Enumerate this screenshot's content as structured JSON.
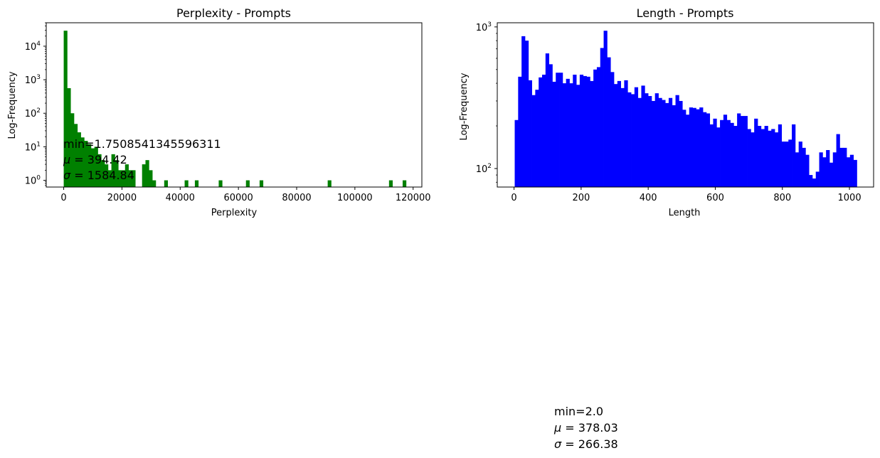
{
  "chart_data": [
    {
      "type": "bar",
      "title": "Perplexity - Prompts",
      "xlabel": "Perplexity",
      "ylabel": "Log-Frequency",
      "yscale": "log",
      "color": "#008000",
      "xlim": [
        -6000,
        123000
      ],
      "ylim": [
        0.63,
        50000
      ],
      "xticks": [
        0,
        20000,
        40000,
        60000,
        80000,
        100000,
        120000
      ],
      "xtick_labels": [
        "0",
        "20000",
        "40000",
        "60000",
        "80000",
        "100000",
        "120000"
      ],
      "ytick_base": "10",
      "ytick_exponents": [
        "0",
        "1",
        "2",
        "3",
        "4"
      ],
      "yticks": [
        1,
        10,
        100,
        1000,
        10000
      ],
      "bin_width": 1170,
      "bins": [
        {
          "x": 0,
          "count": 29000
        },
        {
          "x": 1170,
          "count": 560
        },
        {
          "x": 2340,
          "count": 100
        },
        {
          "x": 3510,
          "count": 48
        },
        {
          "x": 4680,
          "count": 27
        },
        {
          "x": 5850,
          "count": 19
        },
        {
          "x": 7020,
          "count": 15
        },
        {
          "x": 8190,
          "count": 12
        },
        {
          "x": 9360,
          "count": 9
        },
        {
          "x": 10530,
          "count": 10
        },
        {
          "x": 11700,
          "count": 6
        },
        {
          "x": 12870,
          "count": 4
        },
        {
          "x": 14040,
          "count": 3
        },
        {
          "x": 15210,
          "count": 2
        },
        {
          "x": 16380,
          "count": 6
        },
        {
          "x": 17550,
          "count": 4
        },
        {
          "x": 18720,
          "count": 2
        },
        {
          "x": 19890,
          "count": 2
        },
        {
          "x": 21060,
          "count": 3
        },
        {
          "x": 22230,
          "count": 2
        },
        {
          "x": 23400,
          "count": 2
        },
        {
          "x": 26910,
          "count": 3
        },
        {
          "x": 28080,
          "count": 4
        },
        {
          "x": 29250,
          "count": 2
        },
        {
          "x": 30420,
          "count": 1
        },
        {
          "x": 34510,
          "count": 1
        },
        {
          "x": 41530,
          "count": 1
        },
        {
          "x": 45040,
          "count": 1
        },
        {
          "x": 53230,
          "count": 1
        },
        {
          "x": 62590,
          "count": 1
        },
        {
          "x": 67270,
          "count": 1
        },
        {
          "x": 90660,
          "count": 1
        },
        {
          "x": 111720,
          "count": 1
        },
        {
          "x": 116400,
          "count": 1
        }
      ],
      "stats": {
        "min": "min=1.7508541345596311",
        "mu_label": "μ",
        "mu_value": " = 394.42",
        "sigma_label": "σ",
        "sigma_value": " = 1584.84"
      }
    },
    {
      "type": "bar",
      "title": "Length - Prompts",
      "xlabel": "Length",
      "ylabel": "Log-Frequency",
      "yscale": "log",
      "color": "#0000ff",
      "xlim": [
        -50,
        1072
      ],
      "ylim": [
        74,
        1070
      ],
      "xticks": [
        0,
        200,
        400,
        600,
        800,
        1000
      ],
      "xtick_labels": [
        "0",
        "200",
        "400",
        "600",
        "800",
        "1000"
      ],
      "ytick_base": "10",
      "ytick_exponents": [
        "2",
        "3"
      ],
      "yticks": [
        100,
        1000
      ],
      "bin_width": 10.2,
      "bins": [
        {
          "x": 2,
          "count": 220
        },
        {
          "x": 12.2,
          "count": 445
        },
        {
          "x": 22.4,
          "count": 860
        },
        {
          "x": 32.6,
          "count": 800
        },
        {
          "x": 42.8,
          "count": 420
        },
        {
          "x": 53.0,
          "count": 330
        },
        {
          "x": 63.2,
          "count": 360
        },
        {
          "x": 73.4,
          "count": 440
        },
        {
          "x": 83.6,
          "count": 460
        },
        {
          "x": 93.8,
          "count": 650
        },
        {
          "x": 104.0,
          "count": 545
        },
        {
          "x": 114.2,
          "count": 410
        },
        {
          "x": 124.4,
          "count": 475
        },
        {
          "x": 134.6,
          "count": 475
        },
        {
          "x": 144.8,
          "count": 400
        },
        {
          "x": 155.0,
          "count": 430
        },
        {
          "x": 165.2,
          "count": 400
        },
        {
          "x": 175.4,
          "count": 460
        },
        {
          "x": 185.6,
          "count": 390
        },
        {
          "x": 195.8,
          "count": 460
        },
        {
          "x": 206.0,
          "count": 450
        },
        {
          "x": 216.2,
          "count": 445
        },
        {
          "x": 226.4,
          "count": 415
        },
        {
          "x": 236.6,
          "count": 500
        },
        {
          "x": 246.8,
          "count": 520
        },
        {
          "x": 257.0,
          "count": 710
        },
        {
          "x": 267.2,
          "count": 940
        },
        {
          "x": 277.4,
          "count": 610
        },
        {
          "x": 287.6,
          "count": 480
        },
        {
          "x": 297.8,
          "count": 395
        },
        {
          "x": 308.0,
          "count": 415
        },
        {
          "x": 318.2,
          "count": 370
        },
        {
          "x": 328.4,
          "count": 420
        },
        {
          "x": 338.6,
          "count": 345
        },
        {
          "x": 348.8,
          "count": 335
        },
        {
          "x": 359.0,
          "count": 375
        },
        {
          "x": 369.2,
          "count": 315
        },
        {
          "x": 379.4,
          "count": 385
        },
        {
          "x": 389.6,
          "count": 340
        },
        {
          "x": 399.8,
          "count": 325
        },
        {
          "x": 410.0,
          "count": 300
        },
        {
          "x": 420.2,
          "count": 340
        },
        {
          "x": 430.4,
          "count": 315
        },
        {
          "x": 440.6,
          "count": 305
        },
        {
          "x": 450.8,
          "count": 290
        },
        {
          "x": 461.0,
          "count": 315
        },
        {
          "x": 471.2,
          "count": 280
        },
        {
          "x": 481.4,
          "count": 330
        },
        {
          "x": 491.6,
          "count": 300
        },
        {
          "x": 501.8,
          "count": 260
        },
        {
          "x": 512.0,
          "count": 240
        },
        {
          "x": 522.2,
          "count": 270
        },
        {
          "x": 532.4,
          "count": 268
        },
        {
          "x": 542.6,
          "count": 262
        },
        {
          "x": 552.8,
          "count": 270
        },
        {
          "x": 563.0,
          "count": 250
        },
        {
          "x": 573.2,
          "count": 245
        },
        {
          "x": 583.4,
          "count": 205
        },
        {
          "x": 593.6,
          "count": 225
        },
        {
          "x": 603.8,
          "count": 195
        },
        {
          "x": 614.0,
          "count": 220
        },
        {
          "x": 624.2,
          "count": 240
        },
        {
          "x": 634.4,
          "count": 220
        },
        {
          "x": 644.6,
          "count": 210
        },
        {
          "x": 654.8,
          "count": 200
        },
        {
          "x": 665.0,
          "count": 245
        },
        {
          "x": 675.2,
          "count": 235
        },
        {
          "x": 685.4,
          "count": 235
        },
        {
          "x": 695.6,
          "count": 190
        },
        {
          "x": 705.8,
          "count": 180
        },
        {
          "x": 716.0,
          "count": 225
        },
        {
          "x": 726.2,
          "count": 200
        },
        {
          "x": 736.4,
          "count": 190
        },
        {
          "x": 746.6,
          "count": 200
        },
        {
          "x": 756.8,
          "count": 185
        },
        {
          "x": 767.0,
          "count": 190
        },
        {
          "x": 777.2,
          "count": 180
        },
        {
          "x": 787.4,
          "count": 205
        },
        {
          "x": 797.6,
          "count": 155
        },
        {
          "x": 807.8,
          "count": 155
        },
        {
          "x": 818.0,
          "count": 160
        },
        {
          "x": 828.2,
          "count": 205
        },
        {
          "x": 838.4,
          "count": 130
        },
        {
          "x": 848.6,
          "count": 155
        },
        {
          "x": 858.8,
          "count": 140
        },
        {
          "x": 869.0,
          "count": 125
        },
        {
          "x": 879.2,
          "count": 90
        },
        {
          "x": 889.4,
          "count": 85
        },
        {
          "x": 899.6,
          "count": 95
        },
        {
          "x": 909.8,
          "count": 130
        },
        {
          "x": 920.0,
          "count": 120
        },
        {
          "x": 930.2,
          "count": 135
        },
        {
          "x": 940.4,
          "count": 110
        },
        {
          "x": 950.6,
          "count": 130
        },
        {
          "x": 960.8,
          "count": 175
        },
        {
          "x": 971.0,
          "count": 140
        },
        {
          "x": 981.2,
          "count": 140
        },
        {
          "x": 991.4,
          "count": 120
        },
        {
          "x": 1001.6,
          "count": 125
        },
        {
          "x": 1011.8,
          "count": 115
        }
      ],
      "stats": {
        "min": "min=2.0",
        "mu_label": "μ",
        "mu_value": " = 378.03",
        "sigma_label": "σ",
        "sigma_value": " = 266.38"
      }
    }
  ]
}
